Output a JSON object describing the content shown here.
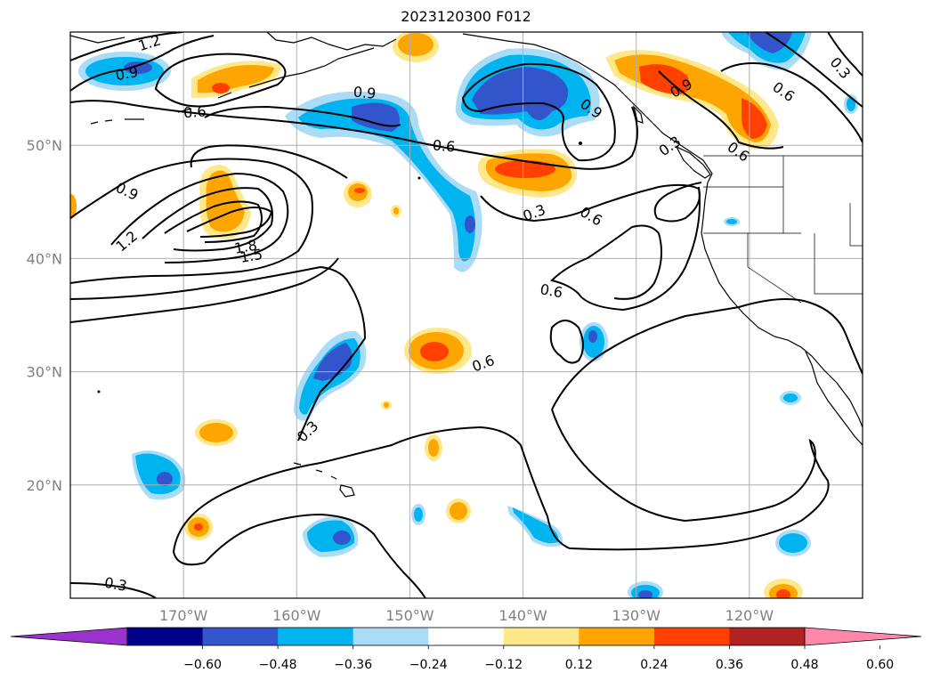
{
  "title": "2023120300 F012",
  "map": {
    "lon_range": [
      -180,
      -110
    ],
    "lat_range": [
      10,
      60
    ],
    "lon_ticks": [
      {
        "value": -170,
        "label": "170°W"
      },
      {
        "value": -160,
        "label": "160°W"
      },
      {
        "value": -150,
        "label": "150°W"
      },
      {
        "value": -140,
        "label": "140°W"
      },
      {
        "value": -130,
        "label": "130°W"
      },
      {
        "value": -120,
        "label": "120°W"
      }
    ],
    "lat_ticks": [
      {
        "value": 50,
        "label": "50°N"
      },
      {
        "value": 40,
        "label": "40°N"
      },
      {
        "value": 30,
        "label": "30°N"
      },
      {
        "value": 20,
        "label": "20°N"
      }
    ],
    "grid": true,
    "contour_labels": [
      {
        "text": "1.2",
        "lon": -173,
        "lat": 59,
        "rot": -18
      },
      {
        "text": "0.9",
        "lon": -175,
        "lat": 56.3,
        "rot": -10
      },
      {
        "text": "0.6",
        "lon": -169,
        "lat": 52.9,
        "rot": -5
      },
      {
        "text": "0.9",
        "lon": -154,
        "lat": 54.6,
        "rot": 5
      },
      {
        "text": "0.6",
        "lon": -147,
        "lat": 49.9,
        "rot": 5
      },
      {
        "text": "0.9",
        "lon": -134,
        "lat": 53.2,
        "rot": 35
      },
      {
        "text": "0.9",
        "lon": -126,
        "lat": 55,
        "rot": -30
      },
      {
        "text": "0.6",
        "lon": -117,
        "lat": 54.7,
        "rot": 35
      },
      {
        "text": "0.3",
        "lon": -112,
        "lat": 56.8,
        "rot": 50
      },
      {
        "text": "0.3",
        "lon": -127,
        "lat": 49.9,
        "rot": -35
      },
      {
        "text": "0.6",
        "lon": -121,
        "lat": 49.4,
        "rot": 35
      },
      {
        "text": "0.9",
        "lon": -175,
        "lat": 45.9,
        "rot": 25
      },
      {
        "text": "1.2",
        "lon": -175,
        "lat": 41.5,
        "rot": -40
      },
      {
        "text": "1.8",
        "lon": -164.5,
        "lat": 41,
        "rot": -10
      },
      {
        "text": "1.5",
        "lon": -164,
        "lat": 40.2,
        "rot": -10
      },
      {
        "text": "0.3",
        "lon": -139,
        "lat": 44,
        "rot": -20
      },
      {
        "text": "0.6",
        "lon": -134,
        "lat": 43.7,
        "rot": 30
      },
      {
        "text": "0.6",
        "lon": -137.5,
        "lat": 37.1,
        "rot": 10
      },
      {
        "text": "0.6",
        "lon": -143.5,
        "lat": 30.7,
        "rot": -20
      },
      {
        "text": "0.3",
        "lon": -159,
        "lat": 24.7,
        "rot": -45
      },
      {
        "text": "0.3",
        "lon": -176,
        "lat": 11.2,
        "rot": 10
      }
    ]
  },
  "colorbar": {
    "colors": [
      "#9933cc",
      "#000088",
      "#3355cc",
      "#00b4f0",
      "#aadcf8",
      "#ffffff",
      "#ffe88a",
      "#ffa500",
      "#ff4000",
      "#b22222",
      "#ff88aa"
    ],
    "ticks": [
      "−0.60",
      "−0.48",
      "−0.36",
      "−0.24",
      "−0.12",
      "0.12",
      "0.24",
      "0.36",
      "0.48",
      "0.60"
    ]
  },
  "colors": {
    "light_blue": "#aadcf8",
    "blue": "#00b4f0",
    "dark_blue": "#3355cc",
    "yellow": "#ffe88a",
    "orange": "#ffa500",
    "red_orange": "#ff4000"
  }
}
